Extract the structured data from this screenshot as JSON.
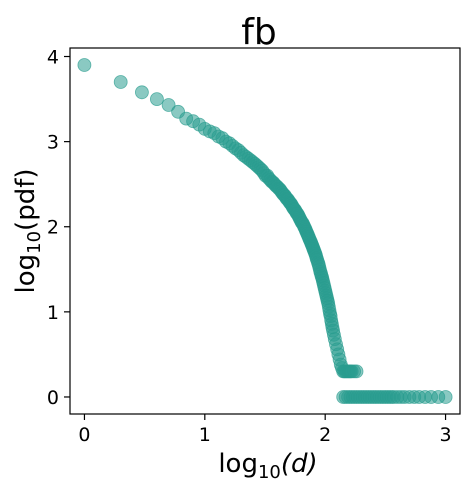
{
  "chart_data": {
    "type": "scatter",
    "title": "fb",
    "xlabel": {
      "base": "log",
      "sub": "10",
      "arg": "(d)"
    },
    "ylabel": {
      "base": "log",
      "sub": "10",
      "arg": "(pdf)"
    },
    "xlim": [
      -0.12,
      3.12
    ],
    "ylim": [
      -0.2,
      4.1
    ],
    "xticks": [
      0,
      1,
      2,
      3
    ],
    "yticks": [
      0,
      1,
      2,
      3,
      4
    ],
    "xtick_labels": [
      "0",
      "1",
      "2",
      "3"
    ],
    "ytick_labels": [
      "0",
      "1",
      "2",
      "3",
      "4"
    ],
    "grid": false,
    "legend": "none",
    "marker_color": "#2a9d8f",
    "marker_alpha": 0.55,
    "points": [
      [
        0.0,
        3.9
      ],
      [
        0.301,
        3.7
      ],
      [
        0.477,
        3.58
      ],
      [
        0.602,
        3.5
      ],
      [
        0.699,
        3.43
      ],
      [
        0.778,
        3.35
      ],
      [
        0.845,
        3.27
      ],
      [
        0.903,
        3.24
      ],
      [
        0.954,
        3.2
      ],
      [
        1.0,
        3.15
      ],
      [
        1.041,
        3.12
      ],
      [
        1.079,
        3.1
      ],
      [
        1.114,
        3.06
      ],
      [
        1.146,
        3.04
      ],
      [
        1.176,
        3.0
      ],
      [
        1.204,
        2.98
      ],
      [
        1.23,
        2.95
      ],
      [
        1.255,
        2.92
      ],
      [
        1.279,
        2.9
      ],
      [
        1.301,
        2.87
      ],
      [
        1.322,
        2.84
      ],
      [
        1.342,
        2.82
      ],
      [
        1.362,
        2.8
      ],
      [
        1.38,
        2.78
      ],
      [
        1.398,
        2.76
      ],
      [
        1.415,
        2.74
      ],
      [
        1.431,
        2.72
      ],
      [
        1.447,
        2.7
      ],
      [
        1.462,
        2.68
      ],
      [
        1.477,
        2.66
      ],
      [
        1.491,
        2.63
      ],
      [
        1.505,
        2.6
      ],
      [
        1.519,
        2.6
      ],
      [
        1.531,
        2.57
      ],
      [
        1.544,
        2.55
      ],
      [
        1.556,
        2.53
      ],
      [
        1.568,
        2.52
      ],
      [
        1.58,
        2.5
      ],
      [
        1.591,
        2.48
      ],
      [
        1.602,
        2.47
      ],
      [
        1.613,
        2.45
      ],
      [
        1.623,
        2.44
      ],
      [
        1.633,
        2.42
      ],
      [
        1.643,
        2.4
      ],
      [
        1.653,
        2.38
      ],
      [
        1.663,
        2.37
      ],
      [
        1.672,
        2.35
      ],
      [
        1.681,
        2.33
      ],
      [
        1.69,
        2.32
      ],
      [
        1.699,
        2.3
      ],
      [
        1.708,
        2.28
      ],
      [
        1.716,
        2.27
      ],
      [
        1.724,
        2.25
      ],
      [
        1.732,
        2.23
      ],
      [
        1.74,
        2.21
      ],
      [
        1.748,
        2.2
      ],
      [
        1.756,
        2.18
      ],
      [
        1.763,
        2.16
      ],
      [
        1.771,
        2.15
      ],
      [
        1.778,
        2.13
      ],
      [
        1.785,
        2.11
      ],
      [
        1.792,
        2.09
      ],
      [
        1.799,
        2.07
      ],
      [
        1.806,
        2.05
      ],
      [
        1.813,
        2.04
      ],
      [
        1.82,
        2.02
      ],
      [
        1.826,
        2.0
      ],
      [
        1.833,
        1.98
      ],
      [
        1.839,
        1.96
      ],
      [
        1.845,
        1.94
      ],
      [
        1.851,
        1.92
      ],
      [
        1.857,
        1.9
      ],
      [
        1.863,
        1.88
      ],
      [
        1.869,
        1.86
      ],
      [
        1.875,
        1.84
      ],
      [
        1.881,
        1.82
      ],
      [
        1.886,
        1.8
      ],
      [
        1.892,
        1.78
      ],
      [
        1.898,
        1.76
      ],
      [
        1.903,
        1.74
      ],
      [
        1.908,
        1.72
      ],
      [
        1.914,
        1.7
      ],
      [
        1.919,
        1.68
      ],
      [
        1.924,
        1.66
      ],
      [
        1.929,
        1.63
      ],
      [
        1.934,
        1.61
      ],
      [
        1.94,
        1.58
      ],
      [
        1.945,
        1.56
      ],
      [
        1.95,
        1.53
      ],
      [
        1.955,
        1.5
      ],
      [
        1.96,
        1.47
      ],
      [
        1.965,
        1.45
      ],
      [
        1.97,
        1.42
      ],
      [
        1.975,
        1.4
      ],
      [
        1.98,
        1.37
      ],
      [
        1.985,
        1.34
      ],
      [
        1.99,
        1.31
      ],
      [
        1.995,
        1.28
      ],
      [
        2.0,
        1.25
      ],
      [
        2.005,
        1.22
      ],
      [
        2.01,
        1.19
      ],
      [
        2.015,
        1.16
      ],
      [
        2.02,
        1.13
      ],
      [
        2.025,
        1.1
      ],
      [
        2.03,
        1.06
      ],
      [
        2.035,
        1.02
      ],
      [
        2.04,
        0.98
      ],
      [
        2.045,
        0.95
      ],
      [
        2.05,
        0.9
      ],
      [
        2.055,
        0.86
      ],
      [
        2.06,
        0.82
      ],
      [
        2.066,
        0.78
      ],
      [
        2.072,
        0.73
      ],
      [
        2.08,
        0.68
      ],
      [
        2.09,
        0.62
      ],
      [
        2.1,
        0.56
      ],
      [
        2.11,
        0.5
      ],
      [
        2.12,
        0.44
      ],
      [
        2.13,
        0.38
      ],
      [
        2.14,
        0.34
      ],
      [
        2.15,
        0.3
      ],
      [
        2.16,
        0.3
      ],
      [
        2.17,
        0.3
      ],
      [
        2.18,
        0.3
      ],
      [
        2.19,
        0.3
      ],
      [
        2.2,
        0.3
      ],
      [
        2.21,
        0.3
      ],
      [
        2.22,
        0.3
      ],
      [
        2.24,
        0.3
      ],
      [
        2.26,
        0.3
      ],
      [
        2.15,
        0.0
      ],
      [
        2.17,
        0.0
      ],
      [
        2.19,
        0.0
      ],
      [
        2.21,
        0.0
      ],
      [
        2.23,
        0.0
      ],
      [
        2.25,
        0.0
      ],
      [
        2.27,
        0.0
      ],
      [
        2.29,
        0.0
      ],
      [
        2.31,
        0.0
      ],
      [
        2.33,
        0.0
      ],
      [
        2.35,
        0.0
      ],
      [
        2.37,
        0.0
      ],
      [
        2.39,
        0.0
      ],
      [
        2.41,
        0.0
      ],
      [
        2.43,
        0.0
      ],
      [
        2.45,
        0.0
      ],
      [
        2.47,
        0.0
      ],
      [
        2.49,
        0.0
      ],
      [
        2.51,
        0.0
      ],
      [
        2.53,
        0.0
      ],
      [
        2.55,
        0.0
      ],
      [
        2.57,
        0.0
      ],
      [
        2.6,
        0.0
      ],
      [
        2.63,
        0.0
      ],
      [
        2.66,
        0.0
      ],
      [
        2.7,
        0.0
      ],
      [
        2.74,
        0.0
      ],
      [
        2.78,
        0.0
      ],
      [
        2.83,
        0.0
      ],
      [
        2.88,
        0.0
      ],
      [
        2.94,
        0.0
      ],
      [
        3.0,
        0.0
      ]
    ]
  }
}
